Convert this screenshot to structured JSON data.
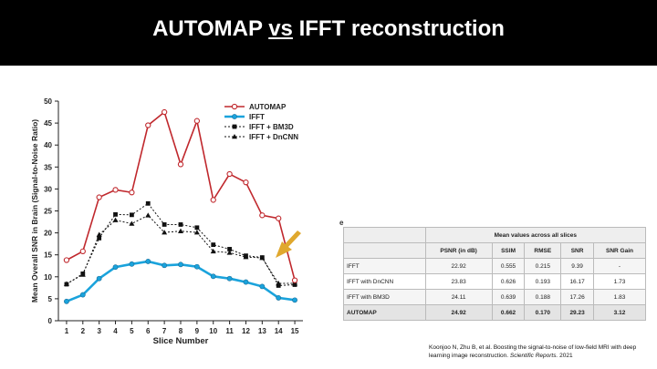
{
  "slide": {
    "title_part1": "AUTOMAP",
    "title_vs": "vs",
    "title_part2": "IFFT reconstruction"
  },
  "chart_data": {
    "type": "line",
    "title": "",
    "xlabel": "Slice Number",
    "ylabel": "Mean Overall SNR in Brain (Signal-to-Noise Ratio)",
    "x": [
      1,
      2,
      3,
      4,
      5,
      6,
      7,
      8,
      9,
      10,
      11,
      12,
      13,
      14,
      15
    ],
    "ylim": [
      0,
      50
    ],
    "yticks": [
      0,
      5,
      10,
      15,
      20,
      25,
      30,
      35,
      40,
      45,
      50
    ],
    "legend_position": "top-right",
    "series": [
      {
        "name": "AUTOMAP",
        "color": "#c0282d",
        "marker": "open-circle",
        "values": [
          13.8,
          15.8,
          28.1,
          29.8,
          29.2,
          44.5,
          47.5,
          35.6,
          45.5,
          27.5,
          33.4,
          31.5,
          24.0,
          23.3,
          9.2
        ]
      },
      {
        "name": "IFFT",
        "color": "#1aa3dc",
        "marker": "filled-circle",
        "values": [
          4.4,
          5.9,
          9.6,
          12.2,
          12.9,
          13.5,
          12.6,
          12.8,
          12.3,
          10.1,
          9.6,
          8.8,
          7.8,
          5.2,
          4.7
        ]
      },
      {
        "name": "IFFT + BM3D",
        "color": "#111111",
        "marker": "square",
        "values": [
          8.3,
          10.7,
          18.8,
          24.2,
          24.1,
          26.7,
          21.9,
          21.9,
          21.2,
          17.3,
          16.3,
          14.8,
          14.4,
          8.0,
          8.2
        ]
      },
      {
        "name": "IFFT + DnCNN",
        "color": "#111111",
        "marker": "triangle",
        "values": [
          8.4,
          10.5,
          19.6,
          22.9,
          22.1,
          24.0,
          20.1,
          20.4,
          20.1,
          15.8,
          15.5,
          14.5,
          14.3,
          8.5,
          8.5
        ]
      }
    ]
  },
  "table": {
    "panel_label": "e",
    "group_header": "Mean values across all slices",
    "columns": [
      "PSNR (in dB)",
      "SSIM",
      "RMSE",
      "SNR",
      "SNR Gain"
    ],
    "rows": [
      {
        "method": "IFFT",
        "values": [
          "22.92",
          "0.555",
          "0.215",
          "9.39",
          "-"
        ]
      },
      {
        "method": "IFFT with DnCNN",
        "values": [
          "23.83",
          "0.626",
          "0.193",
          "16.17",
          "1.73"
        ]
      },
      {
        "method": "IFFT with BM3D",
        "values": [
          "24.11",
          "0.639",
          "0.188",
          "17.26",
          "1.83"
        ]
      },
      {
        "method": "AUTOMAP",
        "values": [
          "24.92",
          "0.662",
          "0.170",
          "29.23",
          "3.12"
        ]
      }
    ]
  },
  "citation": {
    "authors": "Koonjoo N, Zhu B, et al.",
    "paper_title": "Boosting the signal-to-noise of low-field MRI with deep learning image reconstruction.",
    "journal": "Scientific Reports.",
    "year": "2021"
  },
  "colors": {
    "automap": "#c0282d",
    "ifft": "#1aa3dc",
    "arrow": "#e0a82e"
  }
}
